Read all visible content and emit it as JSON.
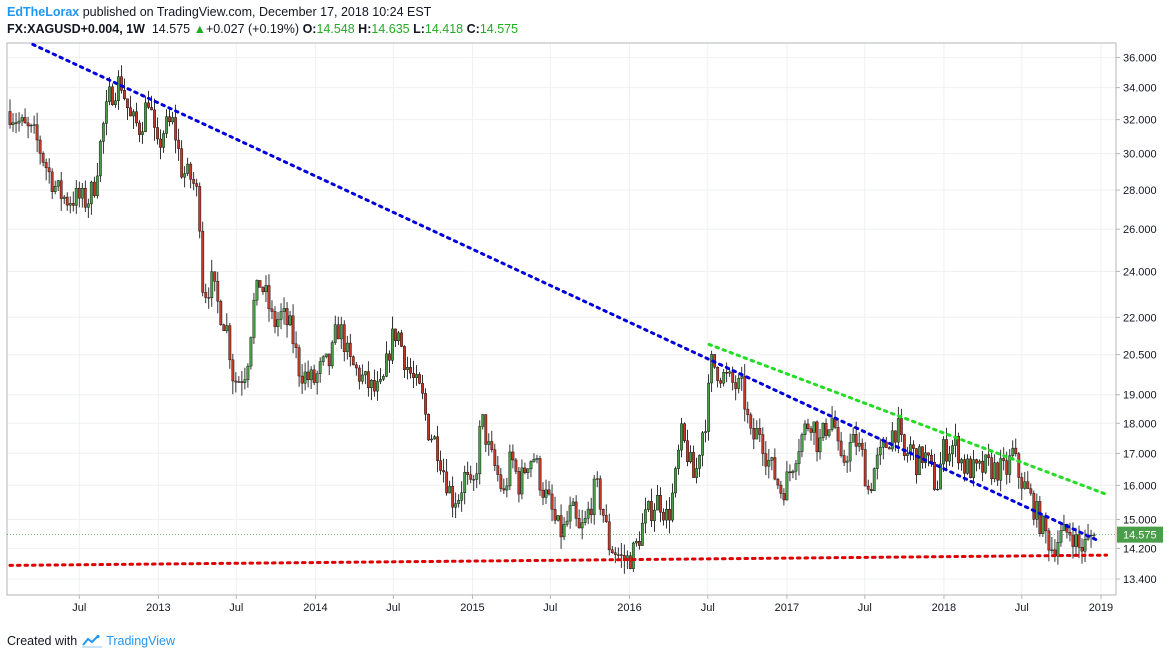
{
  "header": {
    "author": "EdTheLorax",
    "published_text": " published on TradingView.com, December 17, 2018 10:24 EST",
    "symbol": "FX:XAGUSD",
    "symbol_change": "+0.004, 1W",
    "last_price": "14.575",
    "change_arrow": "▲",
    "change": "+0.027 (+0.19%)",
    "open_label": "O:",
    "open": "14.548",
    "high_label": "H:",
    "high": "14.635",
    "low_label": "L:",
    "low": "14.418",
    "close_label": "C:",
    "close": "14.575"
  },
  "footer": {
    "created_with": "Created with",
    "brand": "TradingView"
  },
  "chart_data": {
    "type": "candlestick",
    "scale": "log",
    "ylim": [
      13.0,
      37.0
    ],
    "grid": true,
    "up_color": "#4a9e4a",
    "down_color": "#c0392b",
    "line_color": "#000000",
    "y_ticks": [
      "36.000",
      "34.000",
      "32.000",
      "30.000",
      "28.000",
      "26.000",
      "24.000",
      "22.000",
      "20.500",
      "19.000",
      "18.000",
      "17.000",
      "16.000",
      "15.000",
      "14.200",
      "13.400"
    ],
    "y_tick_values": [
      36,
      34,
      32,
      30,
      28,
      26,
      24,
      22,
      20.5,
      19,
      18,
      17,
      16,
      15,
      14.2,
      13.4
    ],
    "x_ticks": [
      {
        "label": "Jul",
        "date": "2012-07-01"
      },
      {
        "label": "2013",
        "date": "2013-01-01"
      },
      {
        "label": "Jul",
        "date": "2013-07-01"
      },
      {
        "label": "2014",
        "date": "2014-01-01"
      },
      {
        "label": "Jul",
        "date": "2014-07-01"
      },
      {
        "label": "2015",
        "date": "2015-01-01"
      },
      {
        "label": "Jul",
        "date": "2015-07-01"
      },
      {
        "label": "2016",
        "date": "2016-01-01"
      },
      {
        "label": "Jul",
        "date": "2016-07-01"
      },
      {
        "label": "2017",
        "date": "2017-01-01"
      },
      {
        "label": "Jul",
        "date": "2017-07-01"
      },
      {
        "label": "2018",
        "date": "2018-01-01"
      },
      {
        "label": "Jul",
        "date": "2018-07-01"
      },
      {
        "label": "2019",
        "date": "2019-01-01"
      }
    ],
    "x_range": [
      "2012-01-15",
      "2019-02-05"
    ],
    "last_price_tag": {
      "label": "14.575",
      "value": 14.575,
      "color": "#4a9e4a"
    },
    "trendlines": [
      {
        "name": "",
        "color": "#0000dd",
        "style": "dotted",
        "points": [
          [
            "2012-03-15",
            36.9
          ],
          [
            "2018-12-24",
            14.42
          ]
        ]
      },
      {
        "name": "",
        "color": "#22dd22",
        "style": "dotted",
        "points": [
          [
            "2016-07-04",
            20.9
          ],
          [
            "2019-01-14",
            15.73
          ]
        ]
      },
      {
        "name": "",
        "color": "#dd0000",
        "style": "dotted",
        "points": [
          [
            "2012-01-22",
            13.75
          ],
          [
            "2019-01-14",
            14.02
          ]
        ]
      }
    ],
    "path": [
      [
        "2012-01-22",
        32.5
      ],
      [
        "2012-02-20",
        31.6
      ],
      [
        "2012-03-20",
        31.0
      ],
      [
        "2012-04-20",
        29.0
      ],
      [
        "2012-05-10",
        28.0
      ],
      [
        "2012-06-01",
        27.5
      ],
      [
        "2012-06-25",
        27.6
      ],
      [
        "2012-07-20",
        27.4
      ],
      [
        "2012-08-05",
        28.3
      ],
      [
        "2012-08-25",
        31.5
      ],
      [
        "2012-09-10",
        33.5
      ],
      [
        "2012-10-05",
        34.5
      ],
      [
        "2012-10-28",
        32.0
      ],
      [
        "2012-11-20",
        31.5
      ],
      [
        "2012-12-10",
        33.5
      ],
      [
        "2012-12-28",
        30.0
      ],
      [
        "2013-01-15",
        31.5
      ],
      [
        "2013-02-05",
        31.8
      ],
      [
        "2013-02-25",
        29.0
      ],
      [
        "2013-03-20",
        28.6
      ],
      [
        "2013-04-05",
        27.5
      ],
      [
        "2013-04-15",
        23.0
      ],
      [
        "2013-05-05",
        23.5
      ],
      [
        "2013-05-20",
        22.5
      ],
      [
        "2013-06-10",
        21.5
      ],
      [
        "2013-06-25",
        19.5
      ],
      [
        "2013-07-10",
        19.6
      ],
      [
        "2013-07-25",
        20.0
      ],
      [
        "2013-08-10",
        22.5
      ],
      [
        "2013-08-25",
        23.5
      ],
      [
        "2013-09-10",
        22.8
      ],
      [
        "2013-09-25",
        21.7
      ],
      [
        "2013-10-15",
        22.1
      ],
      [
        "2013-11-05",
        21.5
      ],
      [
        "2013-11-25",
        19.9
      ],
      [
        "2013-12-15",
        19.6
      ],
      [
        "2013-12-30",
        19.5
      ],
      [
        "2014-01-15",
        20.0
      ],
      [
        "2014-02-05",
        20.2
      ],
      [
        "2014-02-20",
        21.6
      ],
      [
        "2014-03-05",
        21.3
      ],
      [
        "2014-03-20",
        20.2
      ],
      [
        "2014-04-10",
        19.8
      ],
      [
        "2014-04-30",
        19.4
      ],
      [
        "2014-05-20",
        19.1
      ],
      [
        "2014-06-05",
        19.2
      ],
      [
        "2014-06-25",
        21.0
      ],
      [
        "2014-07-10",
        21.5
      ],
      [
        "2014-07-30",
        20.2
      ],
      [
        "2014-08-20",
        19.4
      ],
      [
        "2014-09-05",
        19.0
      ],
      [
        "2014-09-20",
        17.8
      ],
      [
        "2014-10-10",
        17.3
      ],
      [
        "2014-10-30",
        16.3
      ],
      [
        "2014-11-15",
        15.6
      ],
      [
        "2014-11-30",
        15.7
      ],
      [
        "2014-12-15",
        16.3
      ],
      [
        "2014-12-31",
        15.7
      ],
      [
        "2015-01-10",
        16.5
      ],
      [
        "2015-01-22",
        18.2
      ],
      [
        "2015-02-10",
        17.0
      ],
      [
        "2015-03-01",
        16.3
      ],
      [
        "2015-03-15",
        15.7
      ],
      [
        "2015-04-01",
        16.9
      ],
      [
        "2015-04-20",
        16.0
      ],
      [
        "2015-05-10",
        16.8
      ],
      [
        "2015-05-25",
        16.9
      ],
      [
        "2015-06-10",
        16.0
      ],
      [
        "2015-06-30",
        15.4
      ],
      [
        "2015-07-15",
        14.8
      ],
      [
        "2015-07-30",
        14.6
      ],
      [
        "2015-08-20",
        15.3
      ],
      [
        "2015-09-05",
        14.6
      ],
      [
        "2015-09-20",
        14.9
      ],
      [
        "2015-10-15",
        16.0
      ],
      [
        "2015-10-30",
        15.3
      ],
      [
        "2015-11-15",
        14.3
      ],
      [
        "2015-12-01",
        14.1
      ],
      [
        "2015-12-15",
        13.9
      ],
      [
        "2015-12-30",
        13.9
      ],
      [
        "2016-01-15",
        14.2
      ],
      [
        "2016-02-05",
        15.0
      ],
      [
        "2016-02-25",
        15.4
      ],
      [
        "2016-03-10",
        15.6
      ],
      [
        "2016-03-30",
        15.0
      ],
      [
        "2016-04-15",
        16.0
      ],
      [
        "2016-04-30",
        17.6
      ],
      [
        "2016-05-15",
        17.0
      ],
      [
        "2016-06-01",
        16.1
      ],
      [
        "2016-06-15",
        17.5
      ],
      [
        "2016-06-30",
        18.4
      ],
      [
        "2016-07-08",
        20.2
      ],
      [
        "2016-07-20",
        20.0
      ],
      [
        "2016-08-05",
        19.7
      ],
      [
        "2016-08-20",
        19.5
      ],
      [
        "2016-09-05",
        19.3
      ],
      [
        "2016-09-20",
        19.2
      ],
      [
        "2016-10-10",
        17.4
      ],
      [
        "2016-10-30",
        17.8
      ],
      [
        "2016-11-15",
        16.9
      ],
      [
        "2016-12-01",
        16.4
      ],
      [
        "2016-12-20",
        15.8
      ],
      [
        "2017-01-05",
        16.3
      ],
      [
        "2017-01-25",
        17.2
      ],
      [
        "2017-02-15",
        17.9
      ],
      [
        "2017-03-01",
        18.2
      ],
      [
        "2017-03-15",
        17.2
      ],
      [
        "2017-04-05",
        18.0
      ],
      [
        "2017-04-20",
        18.2
      ],
      [
        "2017-05-05",
        16.5
      ],
      [
        "2017-05-25",
        17.2
      ],
      [
        "2017-06-10",
        17.4
      ],
      [
        "2017-06-25",
        16.9
      ],
      [
        "2017-07-10",
        15.8
      ],
      [
        "2017-07-25",
        16.6
      ],
      [
        "2017-08-10",
        17.0
      ],
      [
        "2017-08-30",
        17.6
      ],
      [
        "2017-09-15",
        17.9
      ],
      [
        "2017-09-30",
        16.8
      ],
      [
        "2017-10-15",
        17.2
      ],
      [
        "2017-10-30",
        16.7
      ],
      [
        "2017-11-15",
        17.0
      ],
      [
        "2017-12-01",
        16.5
      ],
      [
        "2017-12-15",
        15.9
      ],
      [
        "2017-12-30",
        17.1
      ],
      [
        "2018-01-15",
        17.2
      ],
      [
        "2018-01-30",
        17.3
      ],
      [
        "2018-02-15",
        16.6
      ],
      [
        "2018-03-05",
        16.5
      ],
      [
        "2018-03-20",
        16.4
      ],
      [
        "2018-04-10",
        16.6
      ],
      [
        "2018-04-25",
        16.5
      ],
      [
        "2018-05-10",
        16.5
      ],
      [
        "2018-05-25",
        16.4
      ],
      [
        "2018-06-10",
        17.0
      ],
      [
        "2018-06-25",
        16.3
      ],
      [
        "2018-07-10",
        15.9
      ],
      [
        "2018-07-25",
        15.5
      ],
      [
        "2018-08-10",
        15.0
      ],
      [
        "2018-08-25",
        14.6
      ],
      [
        "2018-09-10",
        14.2
      ],
      [
        "2018-09-25",
        14.5
      ],
      [
        "2018-10-10",
        14.6
      ],
      [
        "2018-10-25",
        14.7
      ],
      [
        "2018-11-10",
        14.2
      ],
      [
        "2018-11-25",
        14.3
      ],
      [
        "2018-12-10",
        14.55
      ],
      [
        "2018-12-17",
        14.575
      ]
    ]
  }
}
